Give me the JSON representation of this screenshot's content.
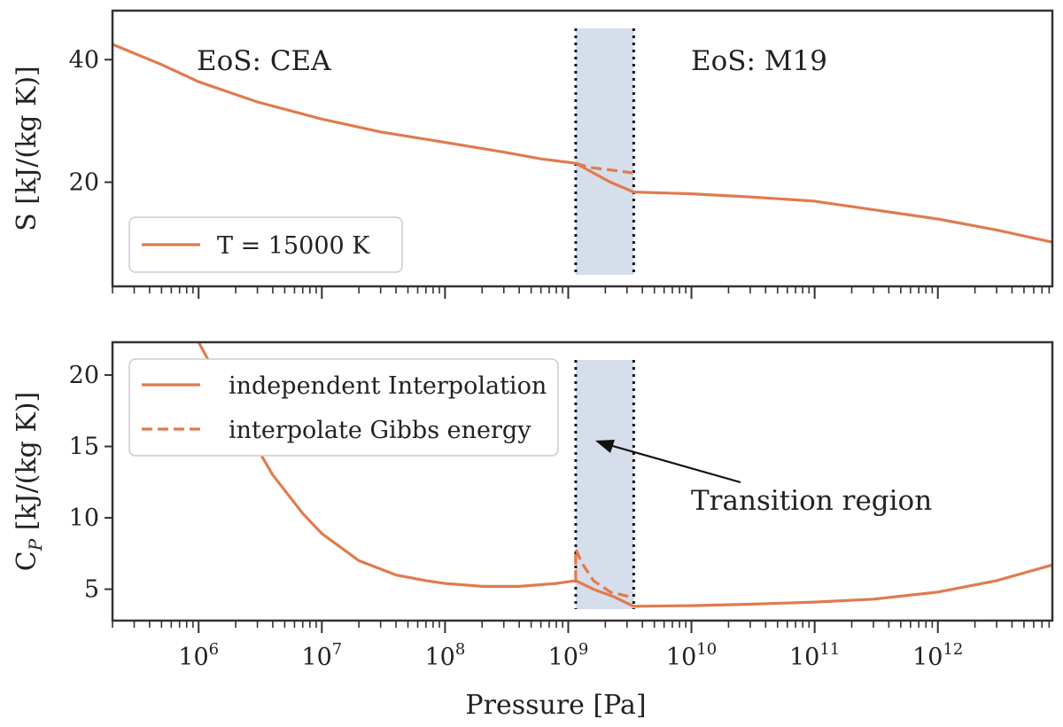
{
  "colors": {
    "curve": "#E07B4F",
    "transition_fill": "#D6DEEC",
    "axes": "#333333",
    "arrow": "#111111",
    "legend_border": "#CCCCCC"
  },
  "shared_x": {
    "label": "Pressure [Pa]",
    "scale": "log",
    "xlim": [
      200000,
      8500000000000
    ],
    "tick_base": "10",
    "tick_exponents": [
      "6",
      "7",
      "8",
      "9",
      "10",
      "11",
      "12"
    ],
    "transition": {
      "start": 1150000000,
      "end": 3400000000
    }
  },
  "chart_data": [
    {
      "type": "line",
      "panel": "top",
      "ylabel": "S [kJ/(kg K)]",
      "ylim": [
        3,
        48
      ],
      "yticks": [
        20,
        40
      ],
      "annotations": {
        "left": "EoS: CEA",
        "right": "EoS: M19"
      },
      "legend": {
        "label": "T = 15000 K",
        "location": "lower-left"
      },
      "series": [
        {
          "name": "T = 15000 K (independent interpolation)",
          "style": "solid",
          "x": [
            200000,
            500000,
            1000000,
            3000000,
            10000000,
            30000000,
            100000000,
            300000000,
            600000000,
            1150000000,
            1600000000,
            2200000000,
            3400000000,
            10000000000,
            30000000000,
            100000000000,
            300000000000,
            1000000000000,
            3000000000000,
            8500000000000
          ],
          "y": [
            42.5,
            39.2,
            36.4,
            33.1,
            30.3,
            28.2,
            26.5,
            24.9,
            23.8,
            23.1,
            21.5,
            20.0,
            18.4,
            18.1,
            17.6,
            16.9,
            15.5,
            14.0,
            12.2,
            10.2
          ]
        },
        {
          "name": "T = 15000 K (interpolate Gibbs energy)",
          "style": "dashed",
          "x": [
            1150000000,
            1500000000,
            2200000000,
            3400000000
          ],
          "y": [
            23.1,
            22.4,
            22.0,
            21.5
          ]
        }
      ]
    },
    {
      "type": "line",
      "panel": "bottom",
      "ylabel": "C",
      "ylabel_sub": "P",
      "ylabel_unit": " [kJ/(kg K)]",
      "ylim": [
        2.8,
        22.3
      ],
      "yticks": [
        5,
        10,
        15,
        20
      ],
      "annotations": {
        "transition": "Transition region"
      },
      "legend": {
        "location": "upper-left",
        "entries": [
          {
            "label": "independent Interpolation",
            "style": "solid"
          },
          {
            "label": "interpolate Gibbs energy",
            "style": "dashed"
          }
        ]
      },
      "series": [
        {
          "name": "independent Interpolation",
          "style": "solid",
          "x": [
            1000000,
            1500000,
            2500000,
            4000000,
            7000000,
            10000000,
            20000000,
            40000000,
            70000000,
            100000000,
            200000000,
            400000000,
            800000000,
            1150000000,
            1150000000,
            1600000000,
            2300000000,
            3400000000,
            10000000000,
            30000000000,
            100000000000,
            300000000000,
            1000000000000,
            3000000000000,
            8500000000000
          ],
          "y": [
            22.3,
            19.5,
            16.0,
            13.0,
            10.3,
            8.9,
            7.0,
            6.0,
            5.6,
            5.4,
            5.2,
            5.2,
            5.4,
            5.6,
            5.6,
            5.0,
            4.5,
            3.8,
            3.85,
            3.95,
            4.1,
            4.3,
            4.8,
            5.6,
            6.7
          ]
        },
        {
          "name": "interpolate Gibbs energy",
          "style": "dashed",
          "x": [
            1150000000,
            1150000000,
            1300000000,
            1600000000,
            2200000000,
            3400000000
          ],
          "y": [
            5.6,
            7.8,
            6.8,
            5.6,
            4.8,
            4.4
          ]
        }
      ]
    }
  ]
}
